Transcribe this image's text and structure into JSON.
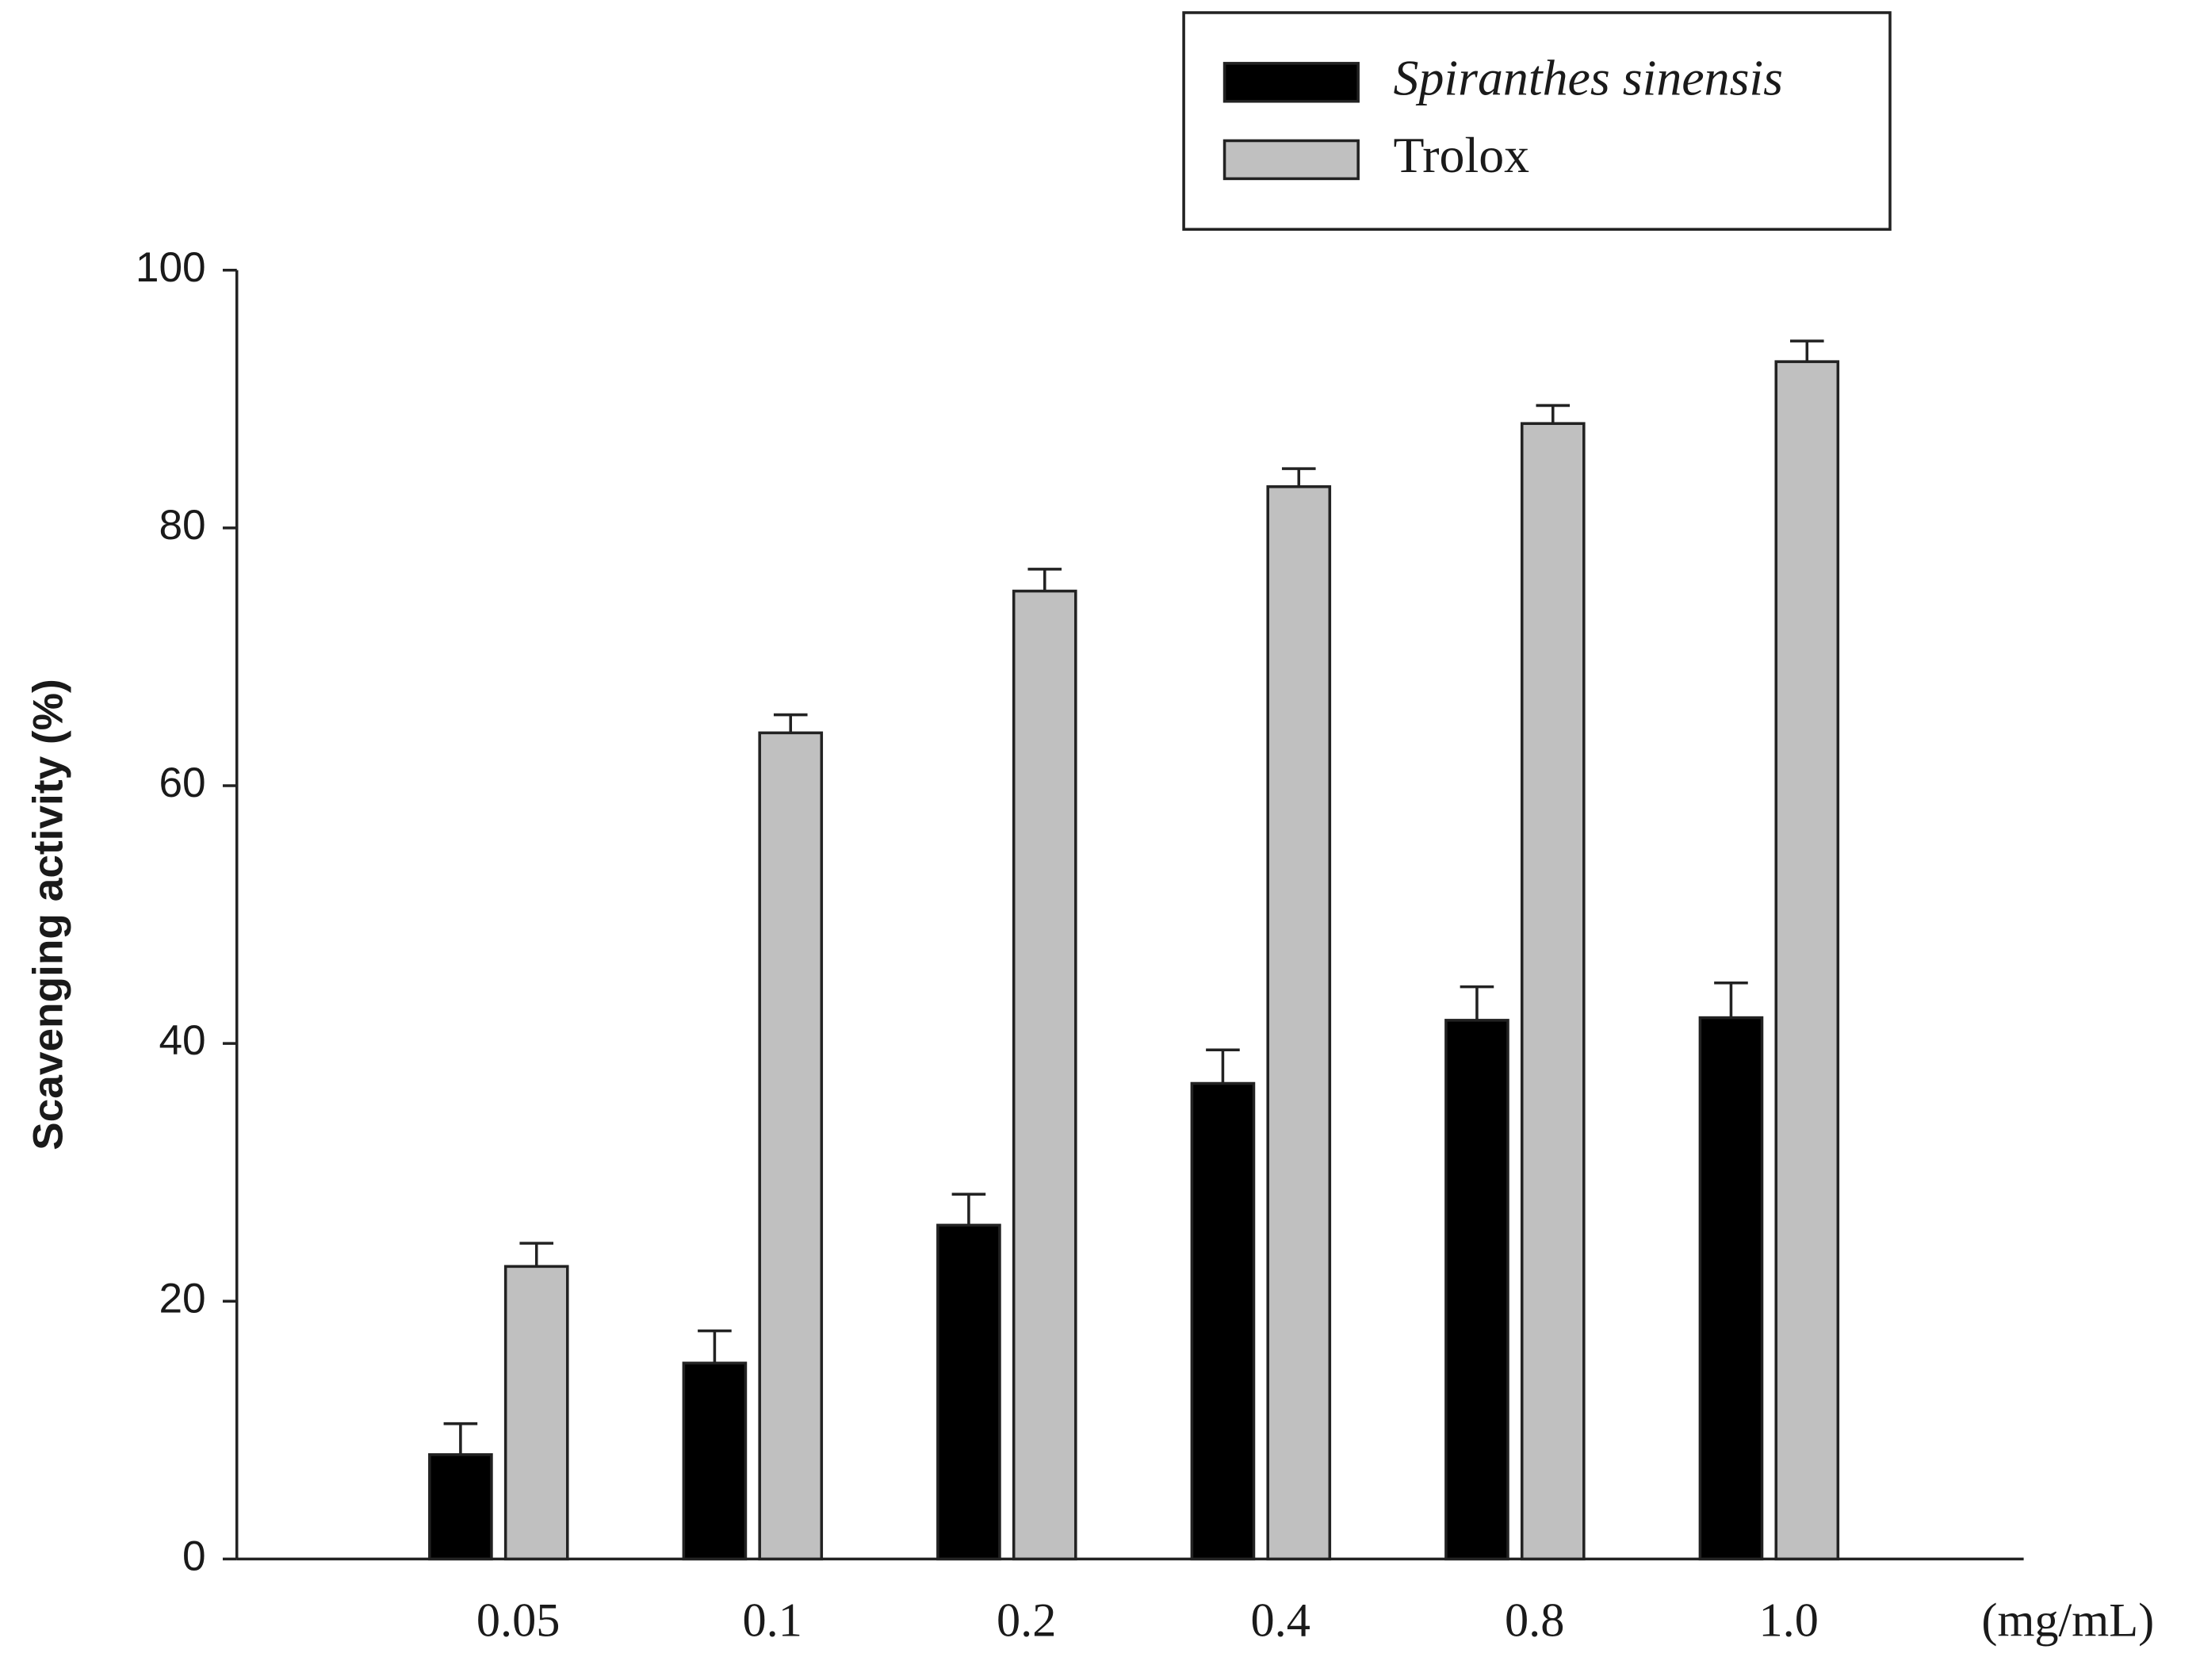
{
  "chart_data": {
    "type": "bar",
    "y_label": "Scavenging activity (%)",
    "x_unit_label": "(mg/mL)",
    "categories": [
      "0.05",
      "0.1",
      "0.2",
      "0.4",
      "0.8",
      "1.0"
    ],
    "series": [
      {
        "name": "Spiranthes sinensis",
        "color": "#000000",
        "values": [
          8.1,
          15.2,
          25.9,
          36.9,
          41.8,
          42.0
        ],
        "errors": [
          2.4,
          2.5,
          2.4,
          2.6,
          2.6,
          2.7
        ]
      },
      {
        "name": "Trolox",
        "color": "#c0c0c0",
        "values": [
          22.7,
          64.1,
          75.1,
          83.2,
          88.1,
          92.9
        ],
        "errors": [
          1.8,
          1.4,
          1.7,
          1.4,
          1.4,
          1.6
        ]
      }
    ],
    "ylim": [
      0,
      100
    ],
    "yticks": [
      0,
      20,
      40,
      60,
      80,
      100
    ],
    "grid": false,
    "legend": "top-right"
  }
}
